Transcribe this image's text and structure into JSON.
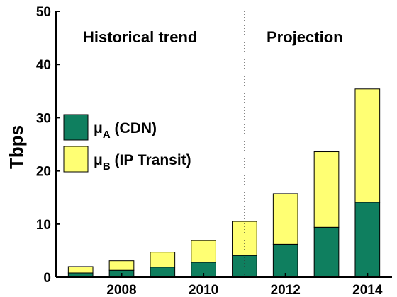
{
  "chart_data": {
    "type": "bar",
    "stacked": true,
    "x": [
      2007,
      2008,
      2009,
      2010,
      2011,
      2012,
      2013,
      2014
    ],
    "x_tick_labels": [
      "2008",
      "2010",
      "2012",
      "2014"
    ],
    "x_tick_values": [
      2008,
      2010,
      2012,
      2014
    ],
    "ylabel": "Tbps",
    "ylim": [
      0,
      50
    ],
    "y_ticks": [
      0,
      10,
      20,
      30,
      40,
      50
    ],
    "grid": false,
    "legend_position": "left",
    "series": [
      {
        "name_symbol": "μ",
        "name_sub": "A",
        "name_rest": " (CDN)",
        "color": "#0f7f5f",
        "values": [
          0.8,
          1.3,
          1.9,
          2.8,
          4.1,
          6.2,
          9.4,
          14.1
        ]
      },
      {
        "name_symbol": "μ",
        "name_sub": "B",
        "name_rest": " (IP Transit)",
        "color": "#ffff73",
        "values": [
          1.2,
          1.8,
          2.8,
          4.1,
          6.4,
          9.5,
          14.2,
          21.3
        ]
      }
    ],
    "divider_x": 2011,
    "annotations": [
      {
        "text": "Historical trend",
        "region": "left"
      },
      {
        "text": "Projection",
        "region": "right"
      }
    ]
  }
}
